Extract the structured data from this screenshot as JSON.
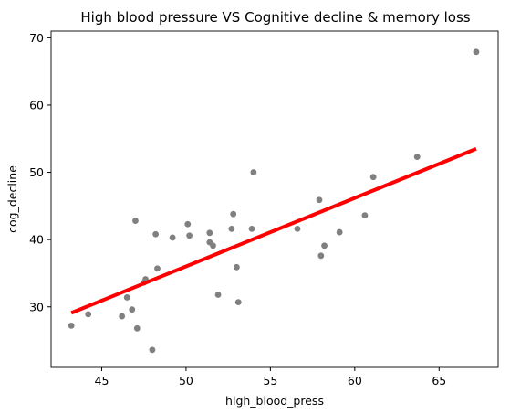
{
  "chart_data": {
    "type": "scatter",
    "title": "High blood pressure VS Cognitive decline & memory loss",
    "xlabel": "high_blood_press",
    "ylabel": "cog_decline",
    "xlim": [
      42.0,
      68.5
    ],
    "ylim": [
      21.0,
      71.0
    ],
    "xticks": [
      45,
      50,
      55,
      60,
      65
    ],
    "yticks": [
      30,
      40,
      50,
      60,
      70
    ],
    "grid": false,
    "legend": "none",
    "points": [
      {
        "x": 43.2,
        "y": 27.2
      },
      {
        "x": 44.2,
        "y": 28.9
      },
      {
        "x": 46.2,
        "y": 28.6
      },
      {
        "x": 46.5,
        "y": 31.4
      },
      {
        "x": 46.8,
        "y": 29.6
      },
      {
        "x": 47.0,
        "y": 42.8
      },
      {
        "x": 47.1,
        "y": 26.8
      },
      {
        "x": 47.5,
        "y": 33.6
      },
      {
        "x": 47.6,
        "y": 34.1
      },
      {
        "x": 48.0,
        "y": 23.6
      },
      {
        "x": 48.2,
        "y": 40.8
      },
      {
        "x": 48.3,
        "y": 35.7
      },
      {
        "x": 49.2,
        "y": 40.3
      },
      {
        "x": 50.1,
        "y": 42.3
      },
      {
        "x": 50.2,
        "y": 40.6
      },
      {
        "x": 51.4,
        "y": 41.0
      },
      {
        "x": 51.4,
        "y": 39.6
      },
      {
        "x": 51.6,
        "y": 39.1
      },
      {
        "x": 51.9,
        "y": 31.8
      },
      {
        "x": 52.7,
        "y": 41.6
      },
      {
        "x": 52.8,
        "y": 43.8
      },
      {
        "x": 53.0,
        "y": 35.9
      },
      {
        "x": 53.1,
        "y": 30.7
      },
      {
        "x": 53.9,
        "y": 41.6
      },
      {
        "x": 54.0,
        "y": 50.0
      },
      {
        "x": 56.6,
        "y": 41.6
      },
      {
        "x": 57.9,
        "y": 45.9
      },
      {
        "x": 58.0,
        "y": 37.6
      },
      {
        "x": 58.2,
        "y": 39.1
      },
      {
        "x": 59.1,
        "y": 41.1
      },
      {
        "x": 60.6,
        "y": 43.6
      },
      {
        "x": 61.1,
        "y": 49.3
      },
      {
        "x": 63.7,
        "y": 52.3
      },
      {
        "x": 67.2,
        "y": 67.9
      }
    ],
    "fit_line": {
      "x": [
        43.2,
        67.2
      ],
      "y": [
        29.1,
        53.5
      ]
    },
    "colors": {
      "points": "#808080",
      "fit_line": "#ff0000",
      "axes": "#000000",
      "background": "#ffffff"
    }
  }
}
